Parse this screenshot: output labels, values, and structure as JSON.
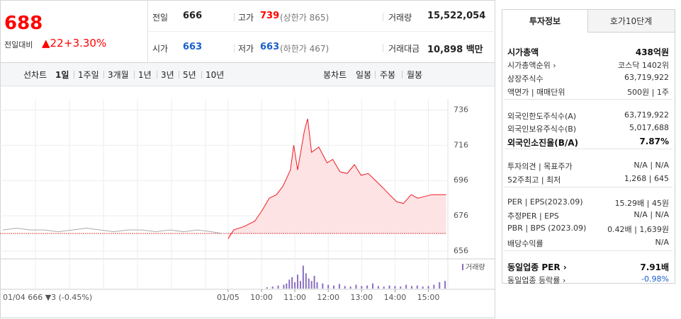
{
  "header": {
    "price": "688",
    "change_label": "전일대비",
    "change": "▲22",
    "change_rate": "+3.30%",
    "info": [
      {
        "label": "전일",
        "value": "666"
      },
      {
        "label": "고가",
        "value": "739",
        "note": "(상한가 865)"
      },
      {
        "label": "거래량",
        "value": "15,522,054"
      },
      {
        "label": "시가",
        "value": "663"
      },
      {
        "label": "저가",
        "value": "663",
        "note": "(하한가 467)"
      },
      {
        "label": "거래대금",
        "value": "10,898 백만"
      }
    ]
  },
  "tabs": {
    "line_label": "선차트",
    "line_periods": [
      "1일",
      "1주일",
      "3개월",
      "1년",
      "3년",
      "5년",
      "10년"
    ],
    "candle_label": "봉차트",
    "candle_periods": [
      "일봉",
      "주봉",
      "월봉"
    ]
  },
  "chart": {
    "type": "line",
    "xlim": [
      -410,
      395
    ],
    "ylim": [
      652,
      747
    ],
    "yticks": [
      736,
      716,
      696,
      676,
      656
    ],
    "xticks": [
      {
        "value": 0,
        "label": "01/05"
      },
      {
        "value": 60,
        "label": "10:00"
      },
      {
        "value": 120,
        "label": "11:00"
      },
      {
        "value": 180,
        "label": "12:00"
      },
      {
        "value": 240,
        "label": "13:00"
      },
      {
        "value": 300,
        "label": "14:00"
      },
      {
        "value": 360,
        "label": "15:00"
      }
    ],
    "prev_day_label": "01/04  666 ▼3 (-0.45%)",
    "reference": 666,
    "grid": true,
    "series": [
      {
        "color": "#aaaaaa",
        "x": [
          -405,
          -380,
          -355,
          -330,
          -305,
          -280,
          -255,
          -230,
          -205,
          -180,
          -155,
          -130,
          -105,
          -80,
          -55,
          -30,
          -10
        ],
        "values": [
          668,
          669,
          668,
          668,
          667,
          668,
          669,
          668,
          667,
          668,
          668,
          667,
          668,
          667,
          668,
          667,
          666
        ]
      },
      {
        "color": "#ee1c25",
        "fill": "#fde3e4",
        "x": [
          0,
          10,
          29,
          48,
          61,
          74,
          87,
          99,
          112,
          118,
          125,
          131,
          137,
          143,
          150,
          163,
          178,
          188,
          201,
          214,
          227,
          239,
          252,
          265,
          278,
          290,
          303,
          315,
          329,
          341,
          354,
          366,
          379,
          392
        ],
        "values": [
          663,
          668,
          670,
          673,
          679,
          686,
          688,
          693,
          702,
          716,
          702,
          713,
          724,
          731,
          712,
          715,
          706,
          708,
          701,
          700,
          705,
          699,
          700,
          696,
          692,
          688,
          684,
          683,
          688,
          686,
          687,
          688,
          688,
          688
        ]
      }
    ],
    "volume": {
      "label": "거래량",
      "color": "#8a6fc0",
      "ylim": [
        0,
        100
      ],
      "x": [
        70,
        80,
        90,
        100,
        105,
        110,
        115,
        120,
        125,
        130,
        135,
        140,
        145,
        150,
        155,
        160,
        170,
        180,
        190,
        200,
        210,
        220,
        230,
        240,
        250,
        260,
        270,
        280,
        290,
        300,
        310,
        320,
        330,
        340,
        350,
        360,
        370,
        380,
        390
      ],
      "values": [
        5,
        8,
        12,
        15,
        20,
        35,
        45,
        25,
        55,
        30,
        90,
        60,
        40,
        30,
        50,
        25,
        20,
        15,
        12,
        18,
        10,
        8,
        15,
        10,
        12,
        20,
        10,
        8,
        12,
        10,
        8,
        15,
        10,
        12,
        8,
        10,
        15,
        25,
        30
      ]
    }
  },
  "investment_info": {
    "tabs": [
      "투자정보",
      "호가10단계"
    ],
    "sections": [
      [
        {
          "label": "시가총액",
          "value": "438억원"
        },
        {
          "label": "시가총액순위 ›",
          "value": "코스닥 1402위"
        },
        {
          "label": "상장주식수",
          "value": "63,719,922"
        },
        {
          "label": "액면가 | 매매단위",
          "value": "500원 | 1주"
        }
      ],
      [
        {
          "label": "외국인한도주식수(A)",
          "value": "63,719,922"
        },
        {
          "label": "외국인보유주식수(B)",
          "value": "5,017,688"
        },
        {
          "label": "외국인소진율(B/A)",
          "value": "7.87%"
        }
      ],
      [
        {
          "label": "투자의견 | 목표주가",
          "value": "N/A | N/A"
        },
        {
          "label": "52주최고 | 최저",
          "value": "1,268 | 645"
        }
      ],
      [
        {
          "label": "PER | EPS(2023.09)",
          "value": "15.29배 | 45원"
        },
        {
          "label": "추정PER | EPS",
          "value": "N/A | N/A"
        },
        {
          "label": "PBR | BPS (2023.09)",
          "value": "0.42배 | 1,639원"
        },
        {
          "label": "배당수익률",
          "value": "N/A"
        }
      ],
      [
        {
          "label": "동일업종 PER ›",
          "value": "7.91배"
        },
        {
          "label": "동일업종 등락률 ›",
          "value": "-0.98%"
        }
      ]
    ]
  }
}
